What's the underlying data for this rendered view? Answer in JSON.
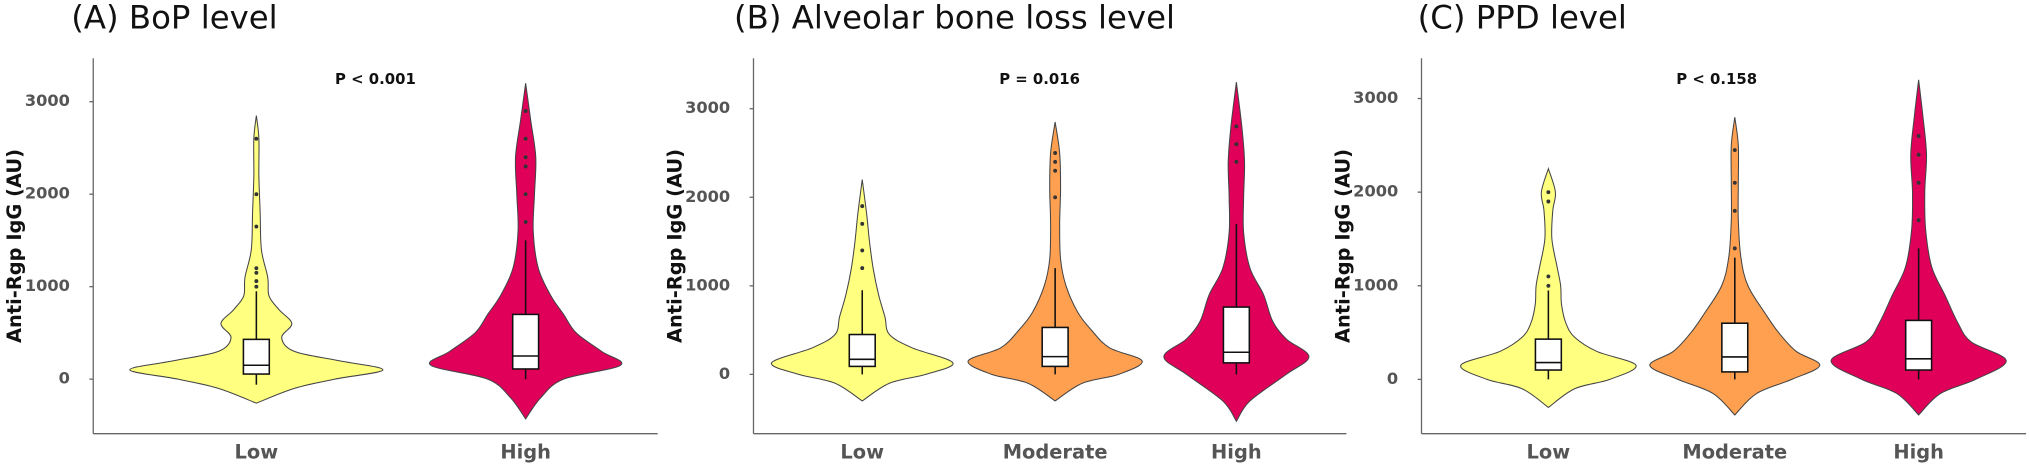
{
  "chart_data": [
    {
      "type": "violin",
      "title": "(A) BoP level",
      "y_label": "Anti-Rgp IgG (AU)",
      "annotation": "P < 0.001",
      "categories": [
        "Low",
        "High"
      ],
      "ylim": [
        -590,
        3470
      ],
      "yticks": [
        0,
        1000,
        2000,
        3000
      ],
      "series": [
        {
          "name": "Low",
          "color": "#ffff80",
          "violin_y": [
            -260,
            -100,
            0,
            100,
            200,
            300,
            450,
            600,
            750,
            900,
            1100,
            1400,
            1800,
            2200,
            2600,
            2850
          ],
          "violin_width": [
            0,
            0.3,
            0.62,
            1.0,
            0.65,
            0.3,
            0.2,
            0.28,
            0.18,
            0.1,
            0.09,
            0.04,
            0.03,
            0.02,
            0.02,
            0
          ],
          "box": {
            "whisker_low": -60,
            "q1": 55,
            "median": 150,
            "q3": 430,
            "whisker_high": 950
          },
          "outliers": [
            1000,
            1060,
            1150,
            1200,
            1650,
            2000,
            2600
          ]
        },
        {
          "name": "High",
          "color": "#e0005a",
          "violin_y": [
            -430,
            -200,
            0,
            150,
            300,
            500,
            700,
            900,
            1200,
            1600,
            2000,
            2400,
            2800,
            3200
          ],
          "violin_width": [
            0,
            0.12,
            0.3,
            0.75,
            0.6,
            0.4,
            0.3,
            0.2,
            0.1,
            0.06,
            0.07,
            0.08,
            0.04,
            0
          ],
          "box": {
            "whisker_low": 0,
            "q1": 110,
            "median": 250,
            "q3": 700,
            "whisker_high": 1500
          },
          "outliers": [
            1700,
            2000,
            2300,
            2400,
            2600,
            2900
          ]
        }
      ]
    },
    {
      "type": "violin",
      "title": "(B) Alveolar bone loss level",
      "y_label": "Anti-Rgp IgG (AU)",
      "annotation": "P = 0.016",
      "categories": [
        "Low",
        "Moderate",
        "High"
      ],
      "ylim": [
        -670,
        3570
      ],
      "yticks": [
        0,
        1000,
        2000,
        3000
      ],
      "series": [
        {
          "name": "Low",
          "color": "#ffff80",
          "violin_y": [
            -300,
            -100,
            0,
            130,
            300,
            450,
            650,
            900,
            1200,
            1500,
            1800,
            2200
          ],
          "violin_width": [
            0,
            0.3,
            0.7,
            1.0,
            0.55,
            0.3,
            0.25,
            0.18,
            0.12,
            0.08,
            0.05,
            0
          ],
          "box": {
            "whisker_low": 0,
            "q1": 90,
            "median": 170,
            "q3": 450,
            "whisker_high": 950
          },
          "outliers": [
            1200,
            1400,
            1700,
            1900
          ]
        },
        {
          "name": "Moderate",
          "color": "#ffa050",
          "violin_y": [
            -300,
            -100,
            0,
            150,
            300,
            500,
            700,
            1000,
            1300,
            1700,
            2100,
            2500,
            2850
          ],
          "violin_width": [
            0,
            0.3,
            0.7,
            0.96,
            0.6,
            0.4,
            0.25,
            0.12,
            0.06,
            0.05,
            0.06,
            0.05,
            0
          ],
          "box": {
            "whisker_low": 0,
            "q1": 90,
            "median": 200,
            "q3": 530,
            "whisker_high": 1200
          },
          "outliers": [
            2000,
            2300,
            2400,
            2500
          ]
        },
        {
          "name": "High",
          "color": "#e0005a",
          "violin_y": [
            -530,
            -300,
            0,
            200,
            400,
            600,
            900,
            1200,
            1600,
            2000,
            2400,
            2800,
            3300
          ],
          "violin_width": [
            0,
            0.15,
            0.55,
            0.8,
            0.55,
            0.4,
            0.3,
            0.15,
            0.08,
            0.08,
            0.09,
            0.06,
            0
          ],
          "box": {
            "whisker_low": 0,
            "q1": 130,
            "median": 250,
            "q3": 760,
            "whisker_high": 1700
          },
          "outliers": [
            2400,
            2600,
            2800
          ]
        }
      ]
    },
    {
      "type": "violin",
      "title": "(C) PPD level",
      "y_label": "Anti-Rgp IgG (AU)",
      "annotation": "P < 0.158",
      "categories": [
        "Low",
        "Moderate",
        "High"
      ],
      "ylim": [
        -580,
        3430
      ],
      "yticks": [
        0,
        1000,
        2000,
        3000
      ],
      "series": [
        {
          "name": "Low",
          "color": "#ffff80",
          "violin_y": [
            -300,
            -100,
            0,
            150,
            300,
            450,
            600,
            800,
            1000,
            1200,
            1500,
            1800,
            2000,
            2250
          ],
          "violin_width": [
            0,
            0.3,
            0.7,
            1.0,
            0.55,
            0.3,
            0.2,
            0.15,
            0.14,
            0.1,
            0.04,
            0.05,
            0.08,
            0
          ],
          "box": {
            "whisker_low": 0,
            "q1": 100,
            "median": 180,
            "q3": 430,
            "whisker_high": 950
          },
          "outliers": [
            1000,
            1100,
            1900,
            2000
          ]
        },
        {
          "name": "Moderate",
          "color": "#ffa050",
          "violin_y": [
            -380,
            -150,
            0,
            150,
            300,
            500,
            700,
            1000,
            1300,
            1700,
            2100,
            2500,
            2800
          ],
          "violin_width": [
            0,
            0.25,
            0.65,
            0.97,
            0.7,
            0.5,
            0.35,
            0.15,
            0.07,
            0.04,
            0.04,
            0.04,
            0
          ],
          "box": {
            "whisker_low": 0,
            "q1": 80,
            "median": 240,
            "q3": 600,
            "whisker_high": 1300
          },
          "outliers": [
            1400,
            1800,
            2100,
            2450
          ]
        },
        {
          "name": "High",
          "color": "#e0005a",
          "violin_y": [
            -380,
            -150,
            0,
            200,
            400,
            600,
            900,
            1200,
            1600,
            2000,
            2400,
            2800,
            3200
          ],
          "violin_width": [
            0,
            0.25,
            0.65,
            1.0,
            0.6,
            0.45,
            0.3,
            0.15,
            0.08,
            0.07,
            0.09,
            0.05,
            0
          ],
          "box": {
            "whisker_low": 0,
            "q1": 100,
            "median": 220,
            "q3": 630,
            "whisker_high": 1400
          },
          "outliers": [
            1700,
            2100,
            2400,
            2600
          ]
        }
      ]
    }
  ]
}
